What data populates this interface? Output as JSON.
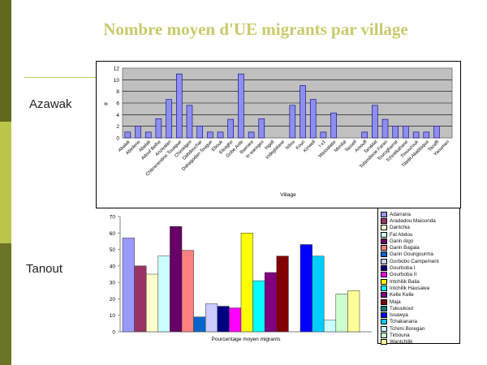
{
  "slide": {
    "title": "Nombre moyen d'UE migrants  par village",
    "region_azawak": "Azawak",
    "region_tanout": "Tanout"
  },
  "colors": {
    "bar_azawak": "#8e8ef0",
    "plot_bg": "#c0c0c0",
    "title": "#c8ca6a"
  },
  "chart_data": [
    {
      "type": "bar",
      "title": "",
      "xlabel": "Village",
      "ylabel": "#",
      "ylim": [
        0,
        12
      ],
      "yticks": [
        0,
        2,
        4,
        6,
        8,
        10,
        12
      ],
      "grid": true,
      "categories": [
        "Abalak",
        "Abeilene",
        "Abelak",
        "Adouf Belhe",
        "Anzwalan",
        "Chikrenentine Touague",
        "Chimelgim",
        "Dabdouchar",
        "Dahagodan Tougue",
        "Ebouk",
        "Eleaghe",
        "Gobe Anfe",
        "Ibamare",
        "In waregen",
        "Ingall",
        "Indeglalane",
        "Isliou",
        "Kouri",
        "Kiriwell",
        "I-x1",
        "Massalatie",
        "Mimilal",
        "Tassell",
        "Amouff",
        "Taraklat",
        "Tofamiliene Faran",
        "Tourogharrat",
        "Tchintikahane",
        "Timouzouk",
        "Tibidit Abablaqua",
        "Tazaffi",
        "Yaoumeri"
      ],
      "series": [
        {
          "values": [
            1,
            2,
            1,
            3.3,
            6.6,
            11,
            5.6,
            2,
            1,
            1,
            3.2,
            11,
            1,
            3.3,
            0,
            0,
            5.6,
            9,
            6.6,
            1,
            4.3,
            0,
            0,
            1,
            5.6,
            3.2,
            2,
            2,
            1,
            1,
            2,
            0
          ]
        }
      ]
    },
    {
      "type": "bar",
      "title": "",
      "xlabel": "Pourcentage moyen migrants",
      "ylabel": "",
      "ylim": [
        0,
        70
      ],
      "yticks": [
        0,
        10,
        20,
        30,
        40,
        50,
        60,
        70
      ],
      "grid": false,
      "categories": [
        "Adarrana",
        "Aradadou Maiounda",
        "Dantchia",
        "Fal Abdou",
        "Garin Algo",
        "Garin Bagala",
        "Garin Goungourma",
        "Gorbobo Campement",
        "Gourboba I",
        "Gourboba II",
        "Intchilik Baila",
        "Intchilik Hausawa",
        "Kelle Kelle",
        "Maja",
        "Tukuukout",
        "Issawya",
        "Tchakanana",
        "Tchimi Boregan",
        "Tirbouna",
        "Wantchilik"
      ],
      "series": [
        {
          "values": [
            57,
            40,
            35,
            46,
            64,
            49.5,
            9,
            17,
            15.5,
            14.5,
            60,
            31,
            36,
            46,
            0,
            53,
            46,
            7,
            23,
            25
          ],
          "colors": [
            "#9999ff",
            "#993366",
            "#ffffcc",
            "#ccffff",
            "#660066",
            "#ff8080",
            "#0066cc",
            "#ccccff",
            "#000080",
            "#ff00ff",
            "#ffff00",
            "#00ffff",
            "#800080",
            "#800000",
            "#008080",
            "#0000ff",
            "#00ccff",
            "#ccffff",
            "#ccffcc",
            "#ffff99"
          ]
        }
      ]
    }
  ]
}
